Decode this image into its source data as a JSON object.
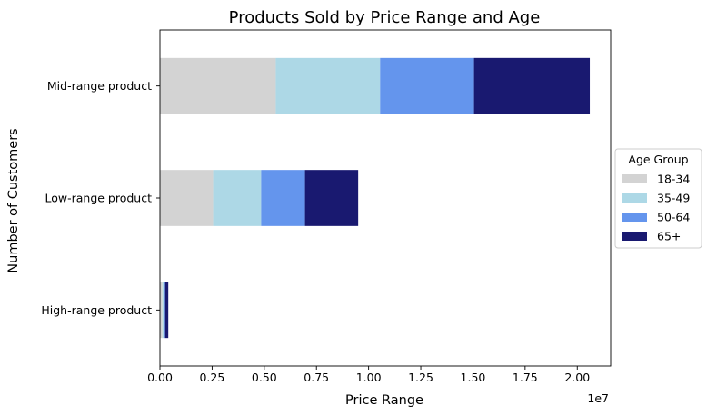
{
  "chart_data": {
    "type": "bar",
    "orientation": "horizontal",
    "stacked": true,
    "title": "Products Sold by Price Range and Age",
    "xlabel": "Price Range",
    "ylabel": "Number of Customers",
    "x_offset_label": "1e7",
    "xlim": [
      0,
      21600000
    ],
    "xticks": [
      0,
      2500000,
      5000000,
      7500000,
      10000000,
      12500000,
      15000000,
      17500000,
      20000000
    ],
    "xtick_labels": [
      "0.00",
      "0.25",
      "0.50",
      "0.75",
      "1.00",
      "1.25",
      "1.50",
      "1.75",
      "2.00"
    ],
    "categories": [
      "High-range product",
      "Low-range product",
      "Mid-range product"
    ],
    "series": [
      {
        "name": "18-34",
        "color": "#d3d3d3",
        "values": [
          120000,
          2550000,
          5550000
        ]
      },
      {
        "name": "35-49",
        "color": "#add8e6",
        "values": [
          80000,
          2300000,
          5000000
        ]
      },
      {
        "name": "50-64",
        "color": "#6495ed",
        "values": [
          50000,
          2100000,
          4500000
        ]
      },
      {
        "name": "65+",
        "color": "#191970",
        "values": [
          150000,
          2550000,
          5550000
        ]
      }
    ],
    "grid": false,
    "legend": {
      "title": "Age Group",
      "placement": "center-right, outside"
    }
  }
}
